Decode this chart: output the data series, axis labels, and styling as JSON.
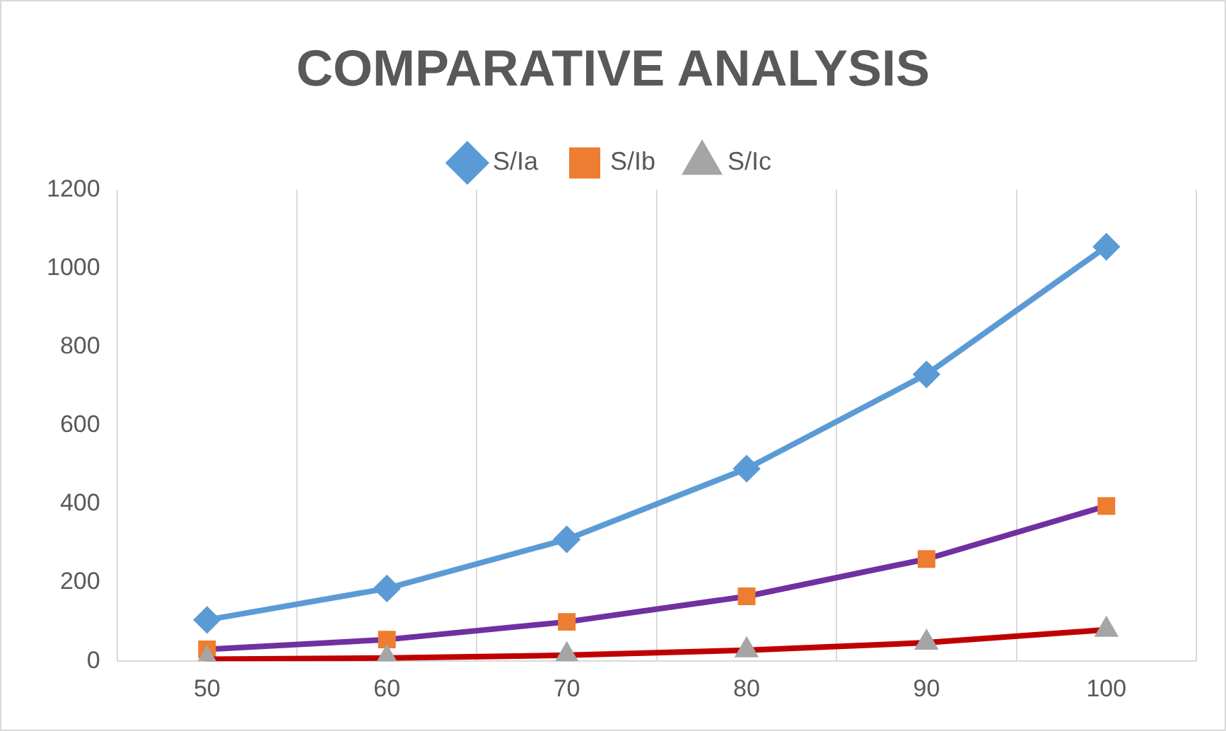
{
  "chart_data": {
    "type": "line",
    "title": "COMPARATIVE ANALYSIS",
    "categories": [
      "50",
      "60",
      "70",
      "80",
      "90",
      "100"
    ],
    "series": [
      {
        "name": "S/Ia",
        "color": "#5b9bd5",
        "marker": "diamond",
        "values": [
          105,
          185,
          310,
          490,
          730,
          1055
        ]
      },
      {
        "name": "S/Ib",
        "color": "#7030a0",
        "marker": "square",
        "colors": [
          "#ed7d31",
          "#ed7d31",
          "#ed7d31",
          "#ed7d31",
          "#ed7d31",
          "#ed7d31"
        ],
        "values": [
          30,
          55,
          100,
          165,
          260,
          395
        ]
      },
      {
        "name": "S/Ic",
        "color": "#c00000",
        "marker": "triangle",
        "colors": [
          "#a5a5a5",
          "#a5a5a5",
          "#a5a5a5",
          "#a5a5a5",
          "#a5a5a5",
          "#a5a5a5"
        ],
        "values": [
          5,
          8,
          15,
          28,
          47,
          80
        ]
      }
    ],
    "ylim": [
      0,
      1200
    ],
    "yticks": [
      0,
      200,
      400,
      600,
      800,
      1000,
      1200
    ],
    "grid": "x",
    "legend": "top",
    "line_style": "solid"
  }
}
